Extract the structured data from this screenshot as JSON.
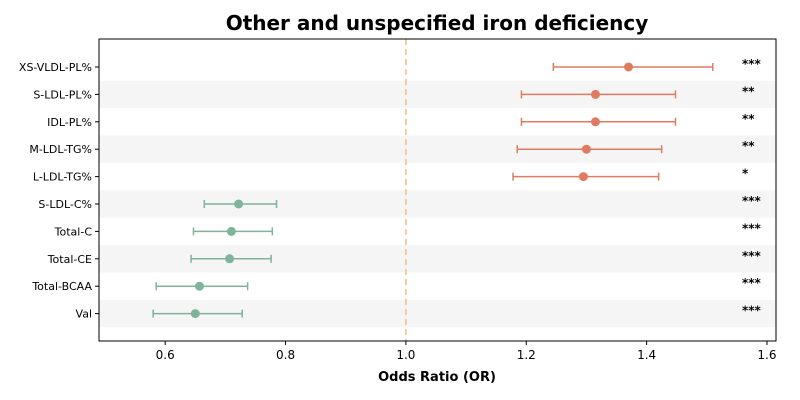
{
  "chart_data": {
    "type": "forest",
    "title": "Other and unspecified iron deficiency",
    "xlabel": "Odds Ratio (OR)",
    "xlim": [
      0.49,
      1.615
    ],
    "xticks": [
      0.6,
      0.8,
      1.0,
      1.2,
      1.4,
      1.6
    ],
    "xtick_labels": [
      "0.6",
      "0.8",
      "1.0",
      "1.2",
      "1.4",
      "1.6"
    ],
    "reference_line": 1.0,
    "colors": {
      "risk": "#e07b5f",
      "protective": "#7fb39a",
      "reference_line": "#f5c08a",
      "band": "#f5f5f5"
    },
    "rows": [
      {
        "label": "XS-VLDL-PL%",
        "or": 1.37,
        "lower": 1.245,
        "upper": 1.51,
        "sig": "***"
      },
      {
        "label": "S-LDL-PL%",
        "or": 1.315,
        "lower": 1.192,
        "upper": 1.448,
        "sig": "**"
      },
      {
        "label": "IDL-PL%",
        "or": 1.315,
        "lower": 1.192,
        "upper": 1.448,
        "sig": "**"
      },
      {
        "label": "M-LDL-TG%",
        "or": 1.3,
        "lower": 1.185,
        "upper": 1.425,
        "sig": "**"
      },
      {
        "label": "L-LDL-TG%",
        "or": 1.295,
        "lower": 1.178,
        "upper": 1.42,
        "sig": "*"
      },
      {
        "label": "S-LDL-C%",
        "or": 0.722,
        "lower": 0.665,
        "upper": 0.785,
        "sig": "***"
      },
      {
        "label": "Total-C",
        "or": 0.71,
        "lower": 0.647,
        "upper": 0.778,
        "sig": "***"
      },
      {
        "label": "Total-CE",
        "or": 0.707,
        "lower": 0.643,
        "upper": 0.776,
        "sig": "***"
      },
      {
        "label": "Total-BCAA",
        "or": 0.657,
        "lower": 0.585,
        "upper": 0.737,
        "sig": "***"
      },
      {
        "label": "Val",
        "or": 0.65,
        "lower": 0.58,
        "upper": 0.728,
        "sig": "***"
      }
    ]
  }
}
